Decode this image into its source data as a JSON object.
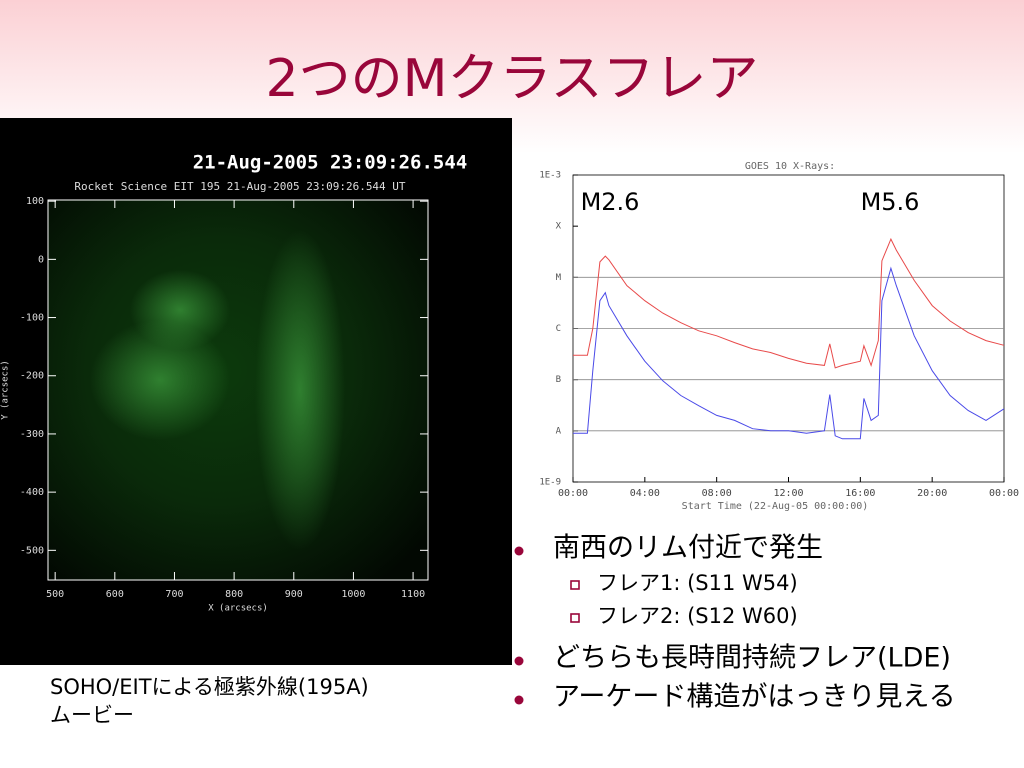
{
  "slide": {
    "title": "2つのMクラスフレア",
    "caption": [
      "SOHO/EITによる極紫外線(195A)",
      "ムービー"
    ],
    "bullets": [
      {
        "text": "南西のリム付近で発生",
        "sub": [
          "フレア1: (S11 W54)",
          "フレア2: (S12 W60)"
        ]
      },
      {
        "text": "どちらも長時間持続フレア(LDE)",
        "sub": []
      },
      {
        "text": "アーケード構造がはっきり見える",
        "sub": []
      }
    ]
  },
  "eit_image": {
    "title": "21-Aug-2005 23:09:26.544",
    "subtitle": "Rocket Science EIT 195 21-Aug-2005 23:09:26.544 UT",
    "x_label": "X (arcsecs)",
    "y_label": "Y (arcsecs)",
    "xlim": [
      488,
      1125
    ],
    "ylim": [
      -551,
      102
    ],
    "xticks": [
      500,
      600,
      700,
      800,
      900,
      1000,
      1100
    ],
    "yticks": [
      100,
      0,
      -100,
      -200,
      -300,
      -400,
      -500
    ]
  },
  "chart_data": {
    "type": "line",
    "title": "GOES 10 X-Rays:",
    "x_label": "Start Time (22-Aug-05 00:00:00)",
    "annotations": [
      "M2.6",
      "M5.6"
    ],
    "yscale": "log",
    "grid": true,
    "x": [
      0,
      0.8,
      1.1,
      1.5,
      1.8,
      2,
      3,
      4,
      5,
      6,
      7,
      8,
      9,
      10,
      11,
      12,
      13,
      14,
      14.3,
      14.6,
      15,
      16,
      16.2,
      16.6,
      17,
      17.2,
      17.7,
      18,
      19,
      20,
      21,
      22,
      23,
      24
    ],
    "series": [
      {
        "color": "#e84a4a",
        "values": [
          3e-07,
          3e-07,
          1e-06,
          2e-05,
          2.6e-05,
          2.2e-05,
          6.9e-06,
          3.5e-06,
          2e-06,
          1.3e-06,
          9e-07,
          7.2e-07,
          5.3e-07,
          4e-07,
          3.4e-07,
          2.6e-07,
          2.1e-07,
          1.9e-07,
          5e-07,
          1.7e-07,
          1.9e-07,
          2.3e-07,
          4.6e-07,
          1.9e-07,
          5.8e-07,
          2.1e-05,
          5.6e-05,
          3.4e-05,
          8.7e-06,
          2.8e-06,
          1.4e-06,
          8.3e-07,
          5.8e-07,
          4.7e-07
        ]
      },
      {
        "color": "#4a4ae8",
        "values": [
          9e-09,
          9e-09,
          1.5e-07,
          3.5e-06,
          5e-06,
          2.8e-06,
          7.2e-07,
          2.3e-07,
          9.5e-08,
          4.9e-08,
          3.1e-08,
          2e-08,
          1.6e-08,
          1.1e-08,
          1e-08,
          1e-08,
          9e-09,
          1e-08,
          5.1e-08,
          8e-09,
          7e-09,
          7e-09,
          4.3e-08,
          1.6e-08,
          2e-08,
          3.5e-06,
          1.5e-05,
          6.9e-06,
          7.2e-07,
          1.5e-07,
          4.9e-08,
          2.5e-08,
          1.6e-08,
          2.7e-08
        ]
      }
    ],
    "xlim": [
      0,
      24
    ],
    "xticks": [
      {
        "value": 0,
        "label": "00:00"
      },
      {
        "value": 4,
        "label": "04:00"
      },
      {
        "value": 8,
        "label": "08:00"
      },
      {
        "value": 12,
        "label": "12:00"
      },
      {
        "value": 16,
        "label": "16:00"
      },
      {
        "value": 20,
        "label": "20:00"
      },
      {
        "value": 24,
        "label": "00:00"
      }
    ],
    "ylim": [
      1e-09,
      0.001
    ],
    "yticks": [
      {
        "value": 0.001,
        "label": "1E-3"
      },
      {
        "value": 0.0001,
        "label": "X"
      },
      {
        "value": 1e-05,
        "label": "M"
      },
      {
        "value": 1e-06,
        "label": "C"
      },
      {
        "value": 1e-07,
        "label": "B"
      },
      {
        "value": 1e-08,
        "label": "A"
      },
      {
        "value": 1e-09,
        "label": "1E-9"
      }
    ]
  }
}
